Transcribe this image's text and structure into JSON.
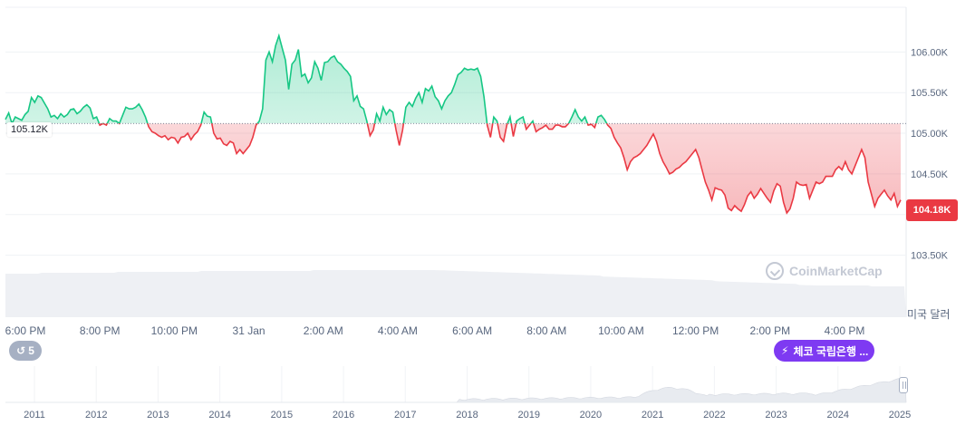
{
  "chart_data": {
    "type": "area",
    "x_labels": [
      "6:00 PM",
      "8:00 PM",
      "10:00 PM",
      "31 Jan",
      "2:00 AM",
      "4:00 AM",
      "6:00 AM",
      "8:00 AM",
      "10:00 AM",
      "12:00 PM",
      "2:00 PM",
      "4:00 PM"
    ],
    "y_tick_labels": [
      "106.00K",
      "105.50K",
      "105.00K",
      "104.50K",
      "104.00K",
      "103.50K"
    ],
    "y_ticks": [
      106000,
      105500,
      105000,
      104500,
      104000,
      103500
    ],
    "ylim": [
      103295,
      106550
    ],
    "reference_value": 105120,
    "reference_label": "105.12K",
    "last_value": 104180,
    "last_label": "104.18K",
    "currency_label": "미국 달러",
    "watermark": "CoinMarketCap",
    "up_color": "#16c784",
    "down_color": "#ea3943",
    "series": [
      {
        "values": [
          105170,
          105250,
          105120,
          105200,
          105180,
          105160,
          105230,
          105270,
          105440,
          105380,
          105460,
          105440,
          105370,
          105300,
          105200,
          105220,
          105180,
          105240,
          105200,
          105230,
          105290,
          105300,
          105240,
          105270,
          105320,
          105350,
          105310,
          105180,
          105200,
          105100,
          105120,
          105100,
          105180,
          105150,
          105150,
          105120,
          105220,
          105320,
          105300,
          105300,
          105320,
          105360,
          105290,
          105200,
          105080,
          105020,
          105000,
          104970,
          104950,
          104970,
          104920,
          104950,
          104940,
          104880,
          104950,
          104960,
          105000,
          104920,
          104980,
          105020,
          105100,
          105260,
          105210,
          105200,
          105000,
          104930,
          104940,
          104870,
          104850,
          104900,
          104880,
          104750,
          104800,
          104750,
          104800,
          104850,
          104950,
          105100,
          105150,
          105300,
          105900,
          106000,
          105880,
          106080,
          106200,
          106050,
          105900,
          105540,
          105850,
          105900,
          106030,
          105700,
          105730,
          105620,
          105680,
          105880,
          105800,
          105650,
          105870,
          105880,
          105930,
          105950,
          105880,
          105850,
          105800,
          105760,
          105700,
          105400,
          105460,
          105330,
          105300,
          105150,
          104970,
          105040,
          105240,
          105150,
          105320,
          105230,
          105290,
          105260,
          105040,
          104850,
          105040,
          105320,
          105380,
          105330,
          105430,
          105500,
          105380,
          105550,
          105520,
          105580,
          105450,
          105400,
          105300,
          105400,
          105460,
          105500,
          105600,
          105720,
          105750,
          105800,
          105780,
          105790,
          105780,
          105800,
          105700,
          105450,
          105100,
          104950,
          105200,
          105150,
          104950,
          104900,
          105100,
          105200,
          104960,
          105150,
          105180,
          105200,
          105050,
          105100,
          105150,
          105020,
          105050,
          105070,
          105100,
          105050,
          105050,
          105100,
          105100,
          105080,
          105080,
          105120,
          105200,
          105290,
          105200,
          105150,
          105200,
          105100,
          105110,
          105070,
          105200,
          105220,
          105170,
          105100,
          105060,
          104950,
          104880,
          104820,
          104700,
          104550,
          104650,
          104700,
          104720,
          104750,
          104800,
          104850,
          104920,
          104990,
          104900,
          104750,
          104650,
          104580,
          104500,
          104520,
          104560,
          104580,
          104620,
          104650,
          104700,
          104750,
          104800,
          104700,
          104550,
          104400,
          104300,
          104180,
          104330,
          104310,
          104300,
          104240,
          104080,
          104050,
          104110,
          104070,
          104040,
          104120,
          104230,
          104280,
          104200,
          104250,
          104320,
          104260,
          104200,
          104150,
          104290,
          104380,
          104350,
          104150,
          104020,
          104070,
          104200,
          104400,
          104370,
          104360,
          104370,
          104200,
          104300,
          104400,
          104380,
          104400,
          104470,
          104470,
          104470,
          104550,
          104590,
          104550,
          104650,
          104550,
          104500,
          104600,
          104700,
          104800,
          104700,
          104400,
          104250,
          104100,
          104200,
          104250,
          104300,
          104230,
          104180,
          104260,
          104100,
          104180
        ]
      }
    ],
    "history": {
      "type": "area",
      "x_labels": [
        "2011",
        "2012",
        "2013",
        "2014",
        "2015",
        "2016",
        "2017",
        "2018",
        "2019",
        "2020",
        "2021",
        "2022",
        "2023",
        "2024",
        "2025"
      ]
    },
    "badges": {
      "history_count": "5",
      "event_label": "체코 국립은행 ..."
    }
  }
}
